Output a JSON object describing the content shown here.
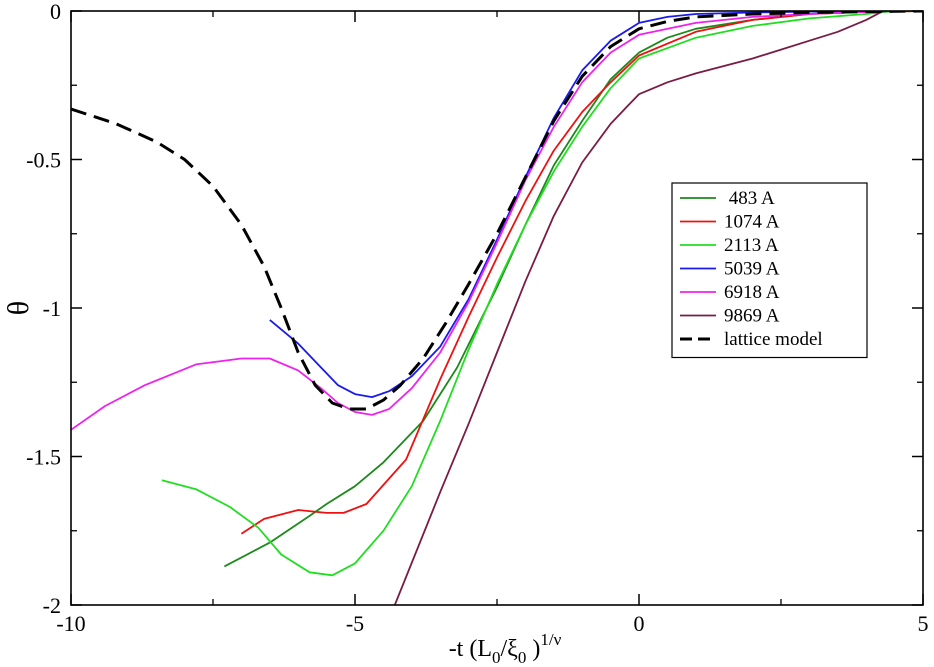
{
  "chart_data": {
    "type": "line",
    "title": "",
    "xlabel": {
      "base": "-t (L",
      "sub1": "0",
      "mid": "/ξ",
      "sub2": "0",
      "end": " )",
      "sup": "1/ν"
    },
    "ylabel": "θ",
    "xlim": [
      -10,
      5
    ],
    "ylim": [
      -2,
      0
    ],
    "x_ticks": [
      -10,
      -5,
      0,
      5
    ],
    "x_tick_labels": [
      "-10",
      "-5",
      "0",
      "5"
    ],
    "y_ticks": [
      -2,
      -1.5,
      -1,
      -0.5,
      0
    ],
    "y_tick_labels": [
      "-2",
      "-1.5",
      "-1",
      "-0.5",
      "0"
    ],
    "legend_position": "right-center",
    "series": [
      {
        "name": " 483 A",
        "color": "#1b8a1b",
        "dash": "none",
        "x": [
          -7.3,
          -6.5,
          -5.8,
          -5.5,
          -5.0,
          -4.5,
          -3.8,
          -3.2,
          -2.5,
          -2.0,
          -1.5,
          -1.0,
          -0.5,
          0.0,
          0.5,
          1.0,
          2.0,
          3.0,
          4.0,
          5.0
        ],
        "y": [
          -1.87,
          -1.79,
          -1.7,
          -1.66,
          -1.6,
          -1.52,
          -1.38,
          -1.2,
          -0.93,
          -0.72,
          -0.52,
          -0.37,
          -0.23,
          -0.14,
          -0.09,
          -0.06,
          -0.03,
          -0.01,
          -0.003,
          0.0
        ]
      },
      {
        "name": "1074 A",
        "color": "#ee1111",
        "dash": "none",
        "x": [
          -7.0,
          -6.6,
          -6.0,
          -5.5,
          -5.2,
          -4.8,
          -4.1,
          -3.5,
          -3.0,
          -2.5,
          -2.0,
          -1.5,
          -1.0,
          -0.5,
          0.0,
          1.0,
          2.0,
          3.0,
          4.0,
          5.0
        ],
        "y": [
          -1.76,
          -1.71,
          -1.68,
          -1.69,
          -1.69,
          -1.66,
          -1.51,
          -1.24,
          -1.03,
          -0.83,
          -0.64,
          -0.47,
          -0.34,
          -0.24,
          -0.15,
          -0.07,
          -0.03,
          -0.01,
          -0.003,
          0.0
        ]
      },
      {
        "name": "2113 A",
        "color": "#22dd22",
        "dash": "none",
        "x": [
          -8.4,
          -7.8,
          -7.2,
          -6.7,
          -6.3,
          -5.8,
          -5.4,
          -5.0,
          -4.5,
          -4.0,
          -3.5,
          -3.0,
          -2.5,
          -2.0,
          -1.5,
          -1.0,
          -0.5,
          0.0,
          1.0,
          2.0,
          3.0,
          4.0,
          4.5
        ],
        "y": [
          -1.58,
          -1.61,
          -1.67,
          -1.74,
          -1.83,
          -1.89,
          -1.9,
          -1.86,
          -1.75,
          -1.6,
          -1.38,
          -1.14,
          -0.92,
          -0.72,
          -0.54,
          -0.39,
          -0.26,
          -0.16,
          -0.09,
          -0.05,
          -0.025,
          -0.01,
          0.0
        ]
      },
      {
        "name": "5039 A",
        "color": "#1a1aee",
        "dash": "none",
        "x": [
          -6.5,
          -6.0,
          -5.6,
          -5.3,
          -5.0,
          -4.7,
          -4.4,
          -4.0,
          -3.5,
          -3.0,
          -2.5,
          -2.0,
          -1.5,
          -1.0,
          -0.5,
          0.0,
          0.5,
          1.0,
          2.0,
          3.0,
          4.0,
          4.5
        ],
        "y": [
          -1.04,
          -1.12,
          -1.2,
          -1.26,
          -1.29,
          -1.3,
          -1.28,
          -1.23,
          -1.13,
          -0.97,
          -0.77,
          -0.56,
          -0.36,
          -0.2,
          -0.1,
          -0.04,
          -0.02,
          -0.01,
          -0.005,
          -0.002,
          -0.001,
          0.0
        ]
      },
      {
        "name": "6918 A",
        "color": "#ee22ee",
        "dash": "none",
        "x": [
          -10.0,
          -9.4,
          -8.7,
          -7.8,
          -7.0,
          -6.5,
          -6.0,
          -5.6,
          -5.3,
          -5.0,
          -4.7,
          -4.4,
          -4.0,
          -3.5,
          -3.0,
          -2.5,
          -2.0,
          -1.5,
          -1.0,
          -0.5,
          0.0,
          1.0,
          2.0,
          3.0,
          4.0,
          4.5
        ],
        "y": [
          -1.41,
          -1.33,
          -1.26,
          -1.19,
          -1.17,
          -1.17,
          -1.21,
          -1.27,
          -1.32,
          -1.35,
          -1.36,
          -1.34,
          -1.27,
          -1.15,
          -0.98,
          -0.78,
          -0.57,
          -0.39,
          -0.24,
          -0.14,
          -0.08,
          -0.04,
          -0.02,
          -0.01,
          -0.003,
          0.0
        ]
      },
      {
        "name": "9869 A",
        "color": "#7a1b45",
        "dash": "none",
        "x": [
          -4.3,
          -3.5,
          -3.0,
          -2.5,
          -2.0,
          -1.5,
          -1.0,
          -0.5,
          -0.2,
          0.0,
          0.5,
          1.0,
          2.0,
          2.5,
          3.0,
          3.5,
          4.0,
          4.3
        ],
        "y": [
          -2.0,
          -1.62,
          -1.39,
          -1.15,
          -0.91,
          -0.69,
          -0.51,
          -0.38,
          -0.32,
          -0.28,
          -0.24,
          -0.21,
          -0.16,
          -0.13,
          -0.1,
          -0.07,
          -0.03,
          0.0
        ]
      },
      {
        "name": "lattice model",
        "color": "#000000",
        "dash": "long",
        "x": [
          -10.0,
          -9.2,
          -8.5,
          -8.0,
          -7.5,
          -7.0,
          -6.6,
          -6.3,
          -6.0,
          -5.7,
          -5.4,
          -5.1,
          -4.8,
          -4.5,
          -4.2,
          -3.8,
          -3.4,
          -3.0,
          -2.5,
          -2.0,
          -1.5,
          -1.0,
          -0.5,
          0.0,
          0.5,
          1.0,
          2.0,
          3.0,
          4.0,
          5.0
        ],
        "y": [
          -0.33,
          -0.38,
          -0.44,
          -0.5,
          -0.59,
          -0.72,
          -0.86,
          -1.0,
          -1.15,
          -1.26,
          -1.32,
          -1.34,
          -1.34,
          -1.31,
          -1.26,
          -1.17,
          -1.05,
          -0.92,
          -0.75,
          -0.56,
          -0.37,
          -0.22,
          -0.12,
          -0.06,
          -0.035,
          -0.02,
          -0.01,
          -0.005,
          -0.002,
          0.0
        ]
      }
    ]
  }
}
